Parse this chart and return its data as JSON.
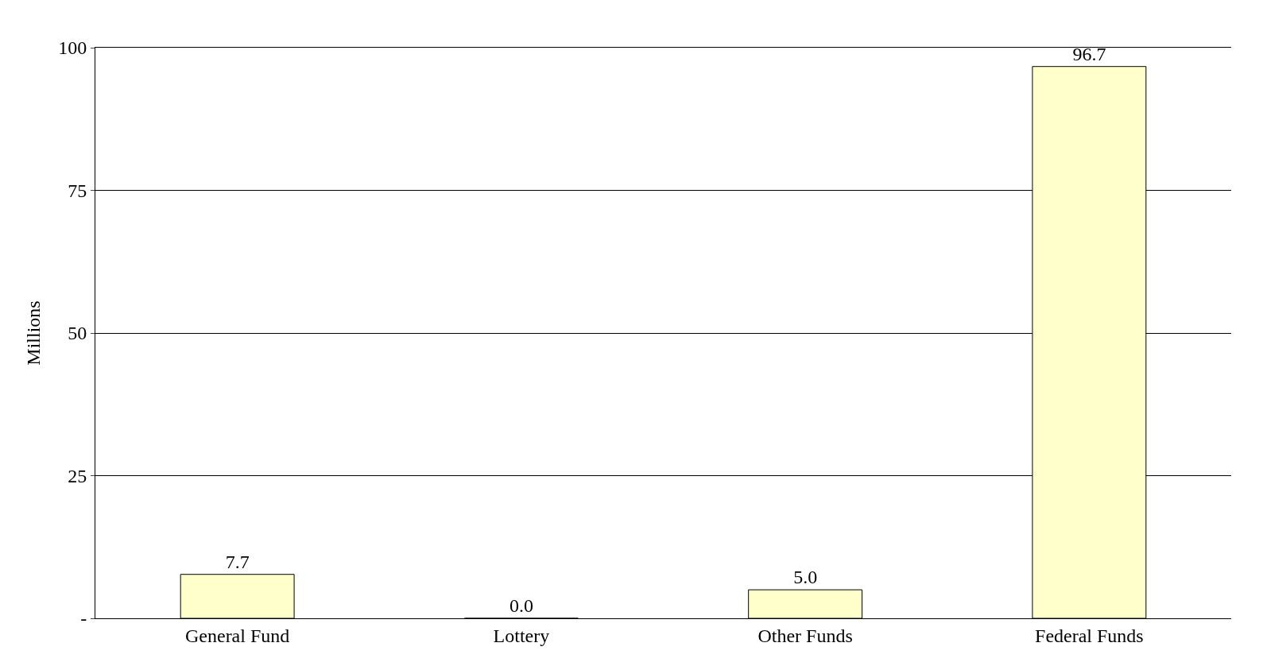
{
  "chart_data": {
    "type": "bar",
    "ylabel": "Millions",
    "categories": [
      "General Fund",
      "Lottery",
      "Other Funds",
      "Federal Funds"
    ],
    "values": [
      7.7,
      0.0,
      5.0,
      96.7
    ],
    "value_labels": [
      "7.7",
      "0.0",
      "5.0",
      "96.7"
    ],
    "color": "#ffffcc",
    "ylim": [
      0,
      100
    ],
    "yticks": [
      {
        "value": 0,
        "label": "-"
      },
      25,
      50,
      75,
      100
    ],
    "grid": "y"
  }
}
